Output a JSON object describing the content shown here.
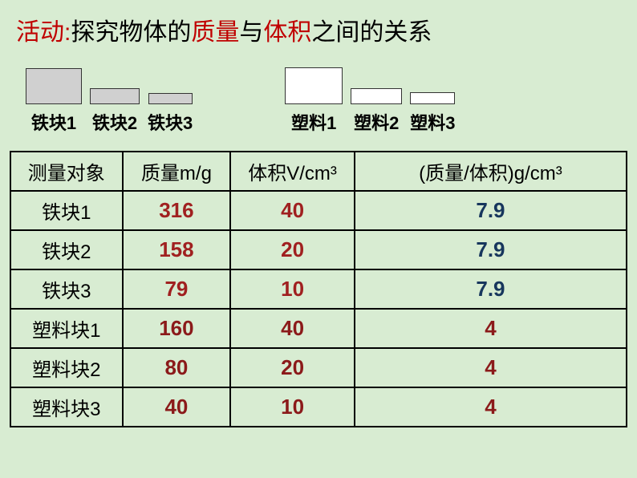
{
  "title": {
    "part1": "活动:",
    "part2": "探究物体的",
    "part3": "质量",
    "part4": "与",
    "part5": "体积",
    "part6": "之间的关系"
  },
  "samples": {
    "iron": [
      {
        "label": "铁块1"
      },
      {
        "label": "铁块2"
      },
      {
        "label": "铁块3"
      }
    ],
    "plastic": [
      {
        "label": "塑料1"
      },
      {
        "label": "塑料2"
      },
      {
        "label": "塑料3"
      }
    ]
  },
  "table": {
    "headers": [
      "测量对象",
      "质量m/g",
      "体积V/cm³",
      "(质量/体积)g/cm³"
    ],
    "rows": [
      {
        "label": "铁块1",
        "mass": "316",
        "volume": "40",
        "ratio": "7.9",
        "mass_color": "red",
        "volume_color": "red",
        "ratio_color": "blue"
      },
      {
        "label": "铁块2",
        "mass": "158",
        "volume": "20",
        "ratio": "7.9",
        "mass_color": "red",
        "volume_color": "red",
        "ratio_color": "blue"
      },
      {
        "label": "铁块3",
        "mass": "79",
        "volume": "10",
        "ratio": "7.9",
        "mass_color": "red",
        "volume_color": "red",
        "ratio_color": "blue"
      },
      {
        "label": "塑料块1",
        "mass": "160",
        "volume": "40",
        "ratio": "4",
        "mass_color": "darkred",
        "volume_color": "darkred",
        "ratio_color": "darkred"
      },
      {
        "label": "塑料块2",
        "mass": "80",
        "volume": "20",
        "ratio": "4",
        "mass_color": "darkred",
        "volume_color": "darkred",
        "ratio_color": "darkred"
      },
      {
        "label": "塑料块3",
        "mass": "40",
        "volume": "10",
        "ratio": "4",
        "mass_color": "darkred",
        "volume_color": "darkred",
        "ratio_color": "darkred"
      }
    ]
  },
  "styling": {
    "background_color": "#d8ecd2",
    "border_color": "#000000",
    "red_text": "#a02020",
    "darkred_text": "#8b1a1a",
    "blue_text": "#17365d",
    "iron_fill": "#d0d0d0",
    "plastic_fill": "#ffffff"
  }
}
